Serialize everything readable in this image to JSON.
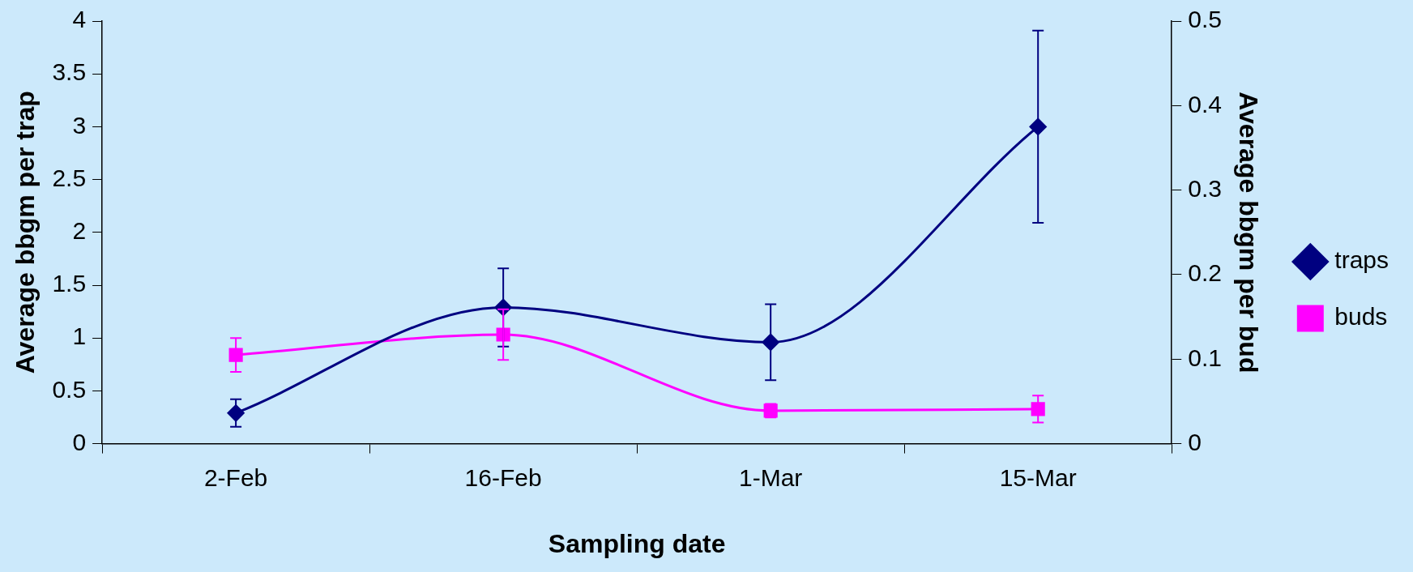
{
  "chart_data": {
    "type": "line",
    "xlabel": "Sampling date",
    "ylabel": "Average bbgm per trap",
    "y2label": "Average bbgm per bud",
    "categories": [
      "2-Feb",
      "16-Feb",
      "1-Mar",
      "15-Mar"
    ],
    "series": [
      {
        "name": "traps",
        "color": "#000080",
        "values": [
          0.29,
          1.29,
          0.96,
          3.0
        ],
        "errors": [
          0.13,
          0.37,
          0.36,
          0.91
        ],
        "marker": "diamond"
      },
      {
        "name": "buds",
        "color": "#ff00ff",
        "values": [
          0.105,
          0.129,
          0.039,
          0.041
        ],
        "errors": [
          0.02,
          0.03,
          0.008,
          0.016
        ],
        "marker": "square",
        "axis": "y2"
      }
    ],
    "ylim": [
      0,
      4
    ],
    "yticks": [
      0,
      {
        "value": 0.5,
        "label": "0.5"
      },
      1,
      {
        "value": 1.5,
        "label": "1.5"
      },
      2,
      {
        "value": 2.5,
        "label": "2.5"
      },
      3,
      {
        "value": 3.5,
        "label": "3.5"
      },
      4
    ],
    "y2lim": [
      0,
      0.5
    ],
    "y2ticks": [
      0,
      {
        "value": 0.1,
        "label": "0.1"
      },
      {
        "value": 0.2,
        "label": "0.2"
      },
      {
        "value": 0.3,
        "label": "0.3"
      },
      {
        "value": 0.4,
        "label": "0.4"
      },
      {
        "value": 0.5,
        "label": "0.5"
      }
    ],
    "grid": false,
    "legend": "right",
    "line_style": "solid"
  }
}
